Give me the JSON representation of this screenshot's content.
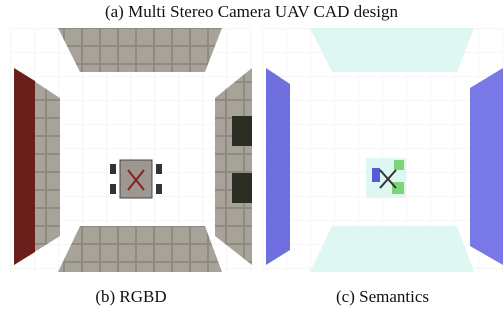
{
  "figure": {
    "caption_a": "(a) Multi Stereo Camera UAV CAD design",
    "caption_b": "(b) RGBD",
    "caption_c": "(c) Semantics"
  }
}
